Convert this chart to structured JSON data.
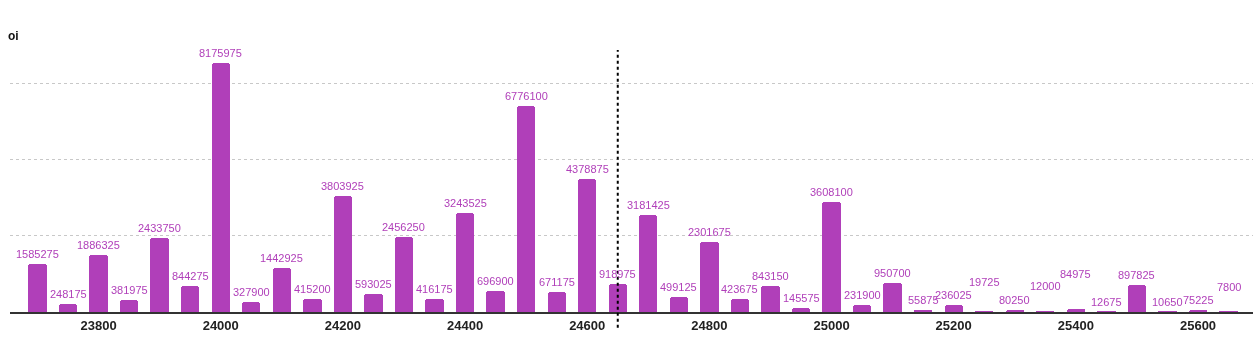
{
  "chart_data": {
    "type": "bar",
    "ylabel": "oi",
    "x": [
      23700,
      23750,
      23800,
      23850,
      23900,
      23950,
      24000,
      24050,
      24100,
      24150,
      24200,
      24250,
      24300,
      24350,
      24400,
      24450,
      24500,
      24550,
      24600,
      24650,
      24700,
      24750,
      24800,
      24850,
      24900,
      24950,
      25000,
      25050,
      25100,
      25150,
      25200,
      25250,
      25300,
      25350,
      25400,
      25450,
      25500,
      25550,
      25600,
      25650
    ],
    "values": [
      1585275,
      248175,
      1886325,
      381975,
      2433750,
      844275,
      8175975,
      327900,
      1442925,
      415200,
      3803925,
      593025,
      2456250,
      416175,
      3243525,
      696900,
      6776100,
      671175,
      4378875,
      918975,
      3181425,
      499125,
      2301675,
      423675,
      843150,
      145575,
      3608100,
      231900,
      950700,
      55875,
      236025,
      19725,
      80250,
      12000,
      84975,
      12675,
      897825,
      10650,
      75225,
      7800
    ],
    "color": "#b03fb9",
    "data_labels": true,
    "xlim": [
      23655,
      25690
    ],
    "xticks": [
      23800,
      24000,
      24200,
      24400,
      24600,
      24800,
      25000,
      25200,
      25400,
      25600
    ],
    "ylim": [
      0,
      8600000
    ],
    "yticks": [
      {
        "value": 2500000,
        "label": null
      },
      {
        "value": 5000000,
        "label": null
      },
      {
        "value": 7500000,
        "label": null
      }
    ],
    "tick_labels": "x",
    "grid": "y",
    "ref_lines": [
      {
        "axis": "x",
        "value": 24650,
        "line_style": "dotted",
        "color": "#000000"
      }
    ]
  }
}
